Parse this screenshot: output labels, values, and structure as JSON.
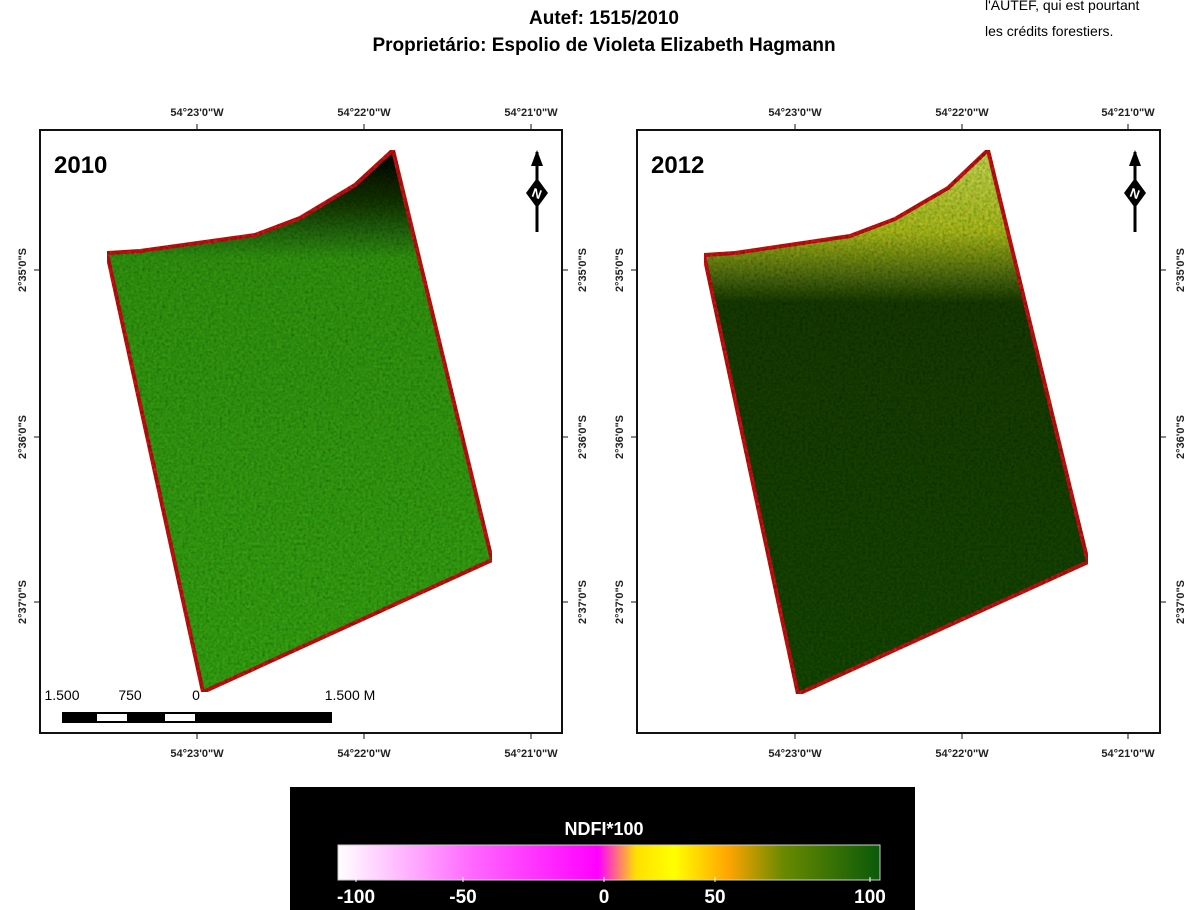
{
  "header": {
    "title": "Autef: 1515/2010",
    "subtitle": "Proprietário: Espolio de Violeta Elizabeth Hagmann"
  },
  "side_text": [
    "l'AUTEF, qui est pourtant",
    "les crédits forestiers."
  ],
  "panels": [
    {
      "year": "2010",
      "x_labels": [
        "54°23'0\"W",
        "54°22'0\"W",
        "54°21'0\"W"
      ],
      "y_labels": [
        "2°35'0\"S",
        "2°36'0\"S",
        "2°37'0\"S"
      ],
      "north": "N"
    },
    {
      "year": "2012",
      "x_labels": [
        "54°23'0\"W",
        "54°22'0\"W",
        "54°21'0\"W"
      ],
      "y_labels": [
        "2°35'0\"S",
        "2°36'0\"S",
        "2°37'0\"S"
      ],
      "north": "N"
    }
  ],
  "scale_bar": [
    "1.500",
    "750",
    "0",
    "1.500 M"
  ],
  "legend": {
    "title": "NDFI*100",
    "ticks": [
      "-100",
      "-50",
      "0",
      "50",
      "100"
    ]
  }
}
